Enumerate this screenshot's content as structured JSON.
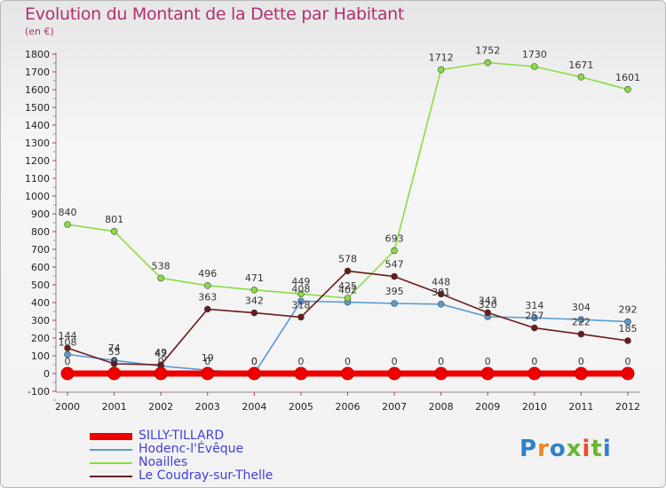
{
  "title": "Evolution du Montant de la Dette par Habitant",
  "subtitle": "(en €)",
  "brand": {
    "text": "Proxiti",
    "letter_colors": [
      "#2f7fcf",
      "#e9882a",
      "#2f7fcf",
      "#66b82e",
      "#e94e2a",
      "#66b82e",
      "#2f7fcf"
    ]
  },
  "chart_data": {
    "type": "line",
    "title": "Evolution du Montant de la Dette par Habitant",
    "ylabel": "(en €)",
    "ylim": [
      -100,
      1800
    ],
    "yticks": [
      -100,
      0,
      100,
      200,
      300,
      400,
      500,
      600,
      700,
      800,
      900,
      1000,
      1100,
      1200,
      1300,
      1400,
      1500,
      1600,
      1700,
      1800
    ],
    "x": [
      "2000",
      "2001",
      "2002",
      "2003",
      "2004",
      "2005",
      "2006",
      "2007",
      "2008",
      "2009",
      "2010",
      "2011",
      "2012"
    ],
    "grid": false,
    "legend_position": "bottom-left",
    "series": [
      {
        "name": "SILLY-TILLARD",
        "color": "#ee0000",
        "values": [
          0,
          0,
          0,
          0,
          0,
          0,
          0,
          0,
          0,
          0,
          0,
          0,
          0
        ]
      },
      {
        "name": "Hodenc-l'Évêque",
        "color": "#5a9bd4",
        "values": [
          108,
          74,
          42,
          19,
          0,
          408,
          402,
          395,
          391,
          320,
          314,
          304,
          292
        ]
      },
      {
        "name": "Noailles",
        "color": "#88dd44",
        "values": [
          840,
          801,
          538,
          496,
          471,
          449,
          425,
          693,
          1712,
          1752,
          1730,
          1671,
          1601
        ]
      },
      {
        "name": "Le Coudray-sur-Thelle",
        "color": "#6b1a1a",
        "values": [
          144,
          55,
          49,
          363,
          342,
          318,
          578,
          547,
          448,
          343,
          257,
          222,
          185
        ]
      }
    ]
  }
}
